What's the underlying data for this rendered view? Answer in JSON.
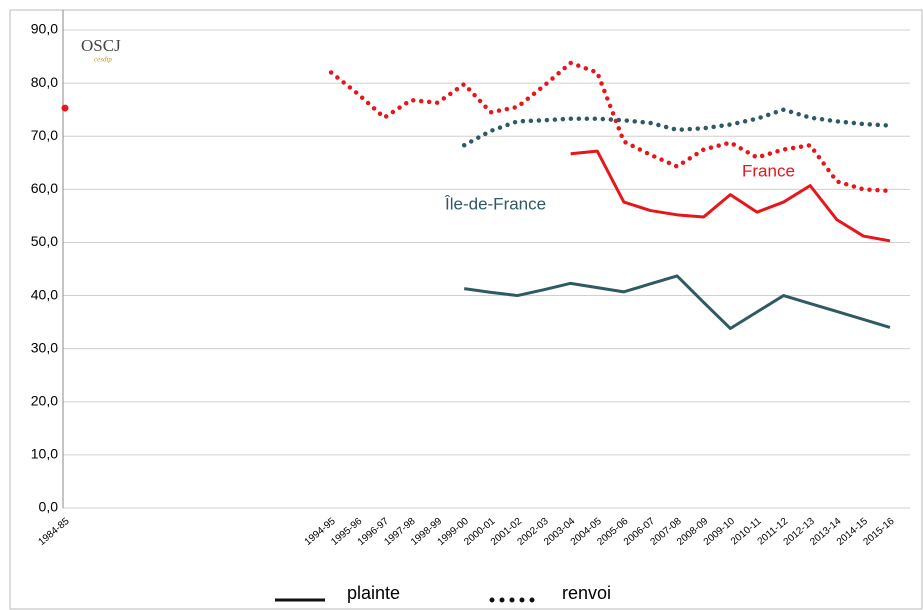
{
  "chart_data": {
    "type": "line",
    "categories": [
      "1984-85",
      null,
      null,
      null,
      null,
      null,
      null,
      null,
      null,
      null,
      "1994-95",
      "1995-96",
      "1996-97",
      "1997-98",
      "1998-99",
      "1999-00",
      "2000-01",
      "2001-02",
      "2002-03",
      "2003-04",
      "2004-05",
      "2005-06",
      "2006-07",
      "2007-08",
      "2008-09",
      "2009-10",
      "2010-11",
      "2011-12",
      "2012-13",
      "2013-14",
      "2014-15",
      "2015-16"
    ],
    "series": [
      {
        "color": "#e8161a",
        "dash": "dotted",
        "values": [
          75.3,
          null,
          null,
          null,
          null,
          null,
          null,
          null,
          null,
          null,
          82,
          78,
          73.5,
          76.8,
          76.3,
          79.8,
          74.5,
          75.5,
          79.5,
          83.8,
          82,
          69,
          66.5,
          64.3,
          67.5,
          68.8,
          66,
          67.5,
          68.3,
          61.5,
          60,
          59.7
        ]
      },
      {
        "color": "#e8161a",
        "dash": "solid",
        "values": [
          null,
          null,
          null,
          null,
          null,
          null,
          null,
          null,
          null,
          null,
          null,
          null,
          null,
          null,
          null,
          null,
          null,
          null,
          null,
          66.7,
          67.2,
          57.6,
          56,
          55.2,
          54.8,
          59,
          55.7,
          57.6,
          60.7,
          54.3,
          51.2,
          50.3
        ]
      },
      {
        "color": "#2e5a66",
        "dash": "dotted",
        "values": [
          null,
          null,
          null,
          null,
          null,
          null,
          null,
          null,
          null,
          null,
          null,
          null,
          null,
          null,
          null,
          68.3,
          71,
          72.8,
          73,
          73.3,
          73.3,
          73,
          72.5,
          71.2,
          71.5,
          72.2,
          73.3,
          75,
          73.5,
          72.8,
          72.3,
          72
        ]
      },
      {
        "color": "#2e5a66",
        "dash": "solid",
        "values": [
          null,
          null,
          null,
          null,
          null,
          null,
          null,
          null,
          null,
          null,
          null,
          null,
          null,
          null,
          null,
          41.3,
          40.6,
          40,
          41.1,
          42.3,
          41.5,
          40.7,
          42.2,
          43.7,
          38.7,
          33.8,
          36.9,
          40,
          38.5,
          37,
          35.5,
          34
        ]
      }
    ],
    "ylim": [
      0,
      90
    ],
    "yticks": [
      {
        "value": 0,
        "label": "0,0"
      },
      {
        "value": 10,
        "label": "10,0"
      },
      {
        "value": 20,
        "label": "20,0"
      },
      {
        "value": 30,
        "label": "30,0"
      },
      {
        "value": 40,
        "label": "40,0"
      },
      {
        "value": 50,
        "label": "50,0"
      },
      {
        "value": 60,
        "label": "60,0"
      },
      {
        "value": 70,
        "label": "70,0"
      },
      {
        "value": 80,
        "label": "80,0"
      },
      {
        "value": 90,
        "label": "90,0"
      }
    ],
    "grid": true,
    "annotations": [
      {
        "text": "France",
        "color": "#e8161a"
      },
      {
        "text": "Île-de-France",
        "color": "#2e5a66"
      }
    ],
    "logo": {
      "title": "OSCJ",
      "subtitle": "cesdip"
    },
    "legend": [
      {
        "label": "plainte",
        "dash": "solid"
      },
      {
        "label": "renvoi",
        "dash": "dotted"
      }
    ]
  }
}
